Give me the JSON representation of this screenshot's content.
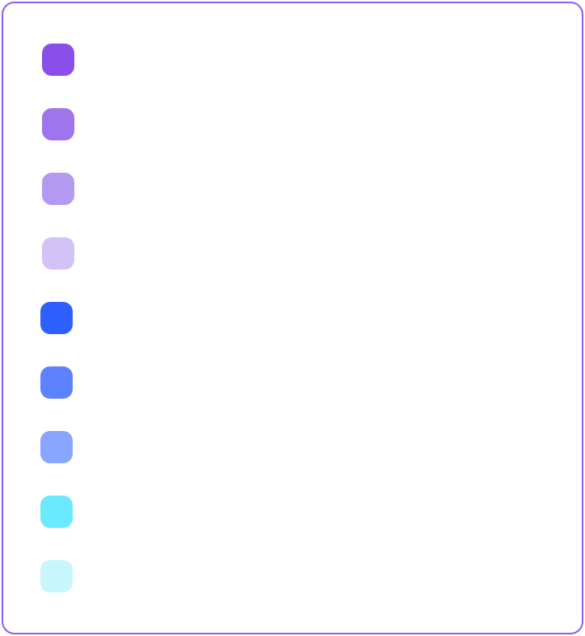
{
  "palette": {
    "border_color": "#8b5cf6",
    "swatches": [
      {
        "color": "#8b4fe9"
      },
      {
        "color": "#9e75ec"
      },
      {
        "color": "#b39af0"
      },
      {
        "color": "#d3c2f6"
      },
      {
        "color": "#2e5fff"
      },
      {
        "color": "#5c82ff"
      },
      {
        "color": "#88a5ff"
      },
      {
        "color": "#6ae9ff"
      },
      {
        "color": "#c7f6fc"
      }
    ]
  }
}
